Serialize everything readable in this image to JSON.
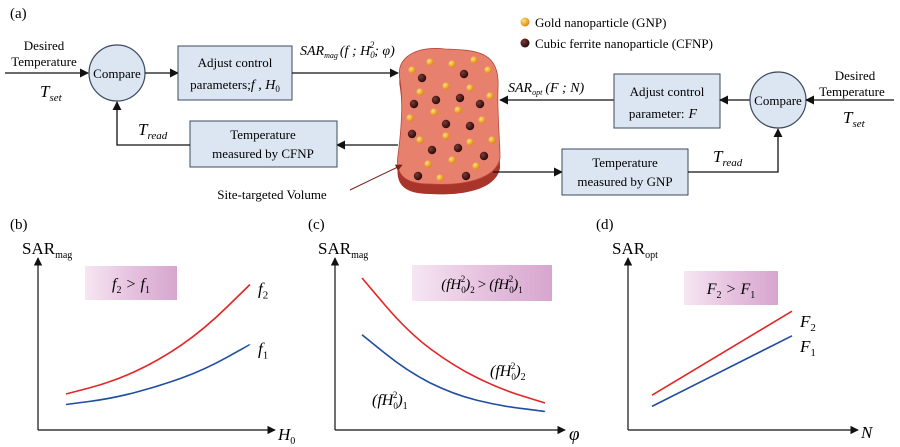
{
  "panel_labels": {
    "a": "(a)",
    "b": "(b)",
    "c": "(c)",
    "d": "(d)"
  },
  "legend": {
    "gold": "Gold nanoparticle (GNP)",
    "ferrite": "Cubic ferrite nanoparticle (CFNP)",
    "gold_color": "#f0a020",
    "ferrite_color": "#4a1818"
  },
  "left_loop": {
    "input_line1": "Desired",
    "input_line2": "Temperature",
    "tset_main": "T",
    "tset_sub": "set",
    "compare": "Compare",
    "adjust_line1": "Adjust control",
    "adjust_line2_text": "parameters;",
    "adjust_line2_vars": "f , H",
    "adjust_line2_sub": "0",
    "sar_main": "SAR",
    "sar_sub": "mag",
    "sar_args": "(f ; H",
    "sar_args_sub": "0",
    "sar_args_sup": "2",
    "sar_args_end": "; φ)",
    "measure_line1": "Temperature",
    "measure_line2": "measured by CFNP",
    "tread_main": "T",
    "tread_sub": "read"
  },
  "right_loop": {
    "input_line1": "Desired",
    "input_line2": "Temperature",
    "tset_main": "T",
    "tset_sub": "set",
    "compare": "Compare",
    "adjust_line1": "Adjust control",
    "adjust_line2": "parameter:",
    "adjust_var": "F",
    "sar_main": "SAR",
    "sar_sub": "opt",
    "sar_args": "(F ; N)",
    "measure_line1": "Temperature",
    "measure_line2": "measured by GNP",
    "tread_main": "T",
    "tread_sub": "read"
  },
  "volume_label": "Site-targeted Volume",
  "colors": {
    "box_fill": "#dce6f2",
    "compare_fill": "#dce6f2",
    "tissue_top": "#e8806e",
    "tissue_side": "#a8342a",
    "red_curve": "#e32626",
    "blue_curve": "#1f4ea0"
  },
  "chart_data": [
    {
      "panel": "(b)",
      "type": "line",
      "ylabel_main": "SAR",
      "ylabel_sub": "mag",
      "xlabel_main": "H",
      "xlabel_sub": "0",
      "annotation": {
        "left": "f",
        "left_sub": "2",
        "op": ">",
        "right": "f",
        "right_sub": "1"
      },
      "series": [
        {
          "name": "f",
          "sub": "2",
          "color": "#e32626",
          "x": [
            0,
            0.25,
            0.5,
            0.75,
            1.0
          ],
          "values": [
            0.12,
            0.2,
            0.34,
            0.55,
            0.85
          ]
        },
        {
          "name": "f",
          "sub": "1",
          "color": "#1f4ea0",
          "x": [
            0,
            0.25,
            0.5,
            0.75,
            1.0
          ],
          "values": [
            0.05,
            0.09,
            0.17,
            0.28,
            0.45
          ]
        }
      ]
    },
    {
      "panel": "(c)",
      "type": "line",
      "ylabel_main": "SAR",
      "ylabel_sub": "mag",
      "xlabel_main": "φ",
      "xlabel_sub": "",
      "annotation": {
        "left": "(fH",
        "left_sub": "0",
        "left_sup": "2",
        "left_end": ")",
        "left_end_sub": "2",
        "op": ">",
        "right": "(fH",
        "right_sub": "0",
        "right_sup": "2",
        "right_end": ")",
        "right_end_sub": "1"
      },
      "series": [
        {
          "name": "(fH₀²)",
          "sub": "2",
          "color": "#e32626",
          "x": [
            0,
            0.25,
            0.5,
            0.75,
            1.0
          ],
          "values": [
            1.0,
            0.62,
            0.38,
            0.22,
            0.12
          ]
        },
        {
          "name": "(fH₀²)",
          "sub": "1",
          "color": "#1f4ea0",
          "x": [
            0,
            0.25,
            0.5,
            0.75,
            1.0
          ],
          "values": [
            0.6,
            0.34,
            0.18,
            0.1,
            0.06
          ]
        }
      ]
    },
    {
      "panel": "(d)",
      "type": "line",
      "ylabel_main": "SAR",
      "ylabel_sub": "opt",
      "xlabel_main": "N",
      "xlabel_sub": "",
      "annotation": {
        "left": "F",
        "left_sub": "2",
        "op": ">",
        "right": "F",
        "right_sub": "1"
      },
      "series": [
        {
          "name": "F",
          "sub": "2",
          "color": "#e32626",
          "x": [
            0,
            1
          ],
          "values": [
            0.15,
            0.9
          ]
        },
        {
          "name": "F",
          "sub": "1",
          "color": "#1f4ea0",
          "x": [
            0,
            1
          ],
          "values": [
            0.05,
            0.68
          ]
        }
      ]
    }
  ]
}
